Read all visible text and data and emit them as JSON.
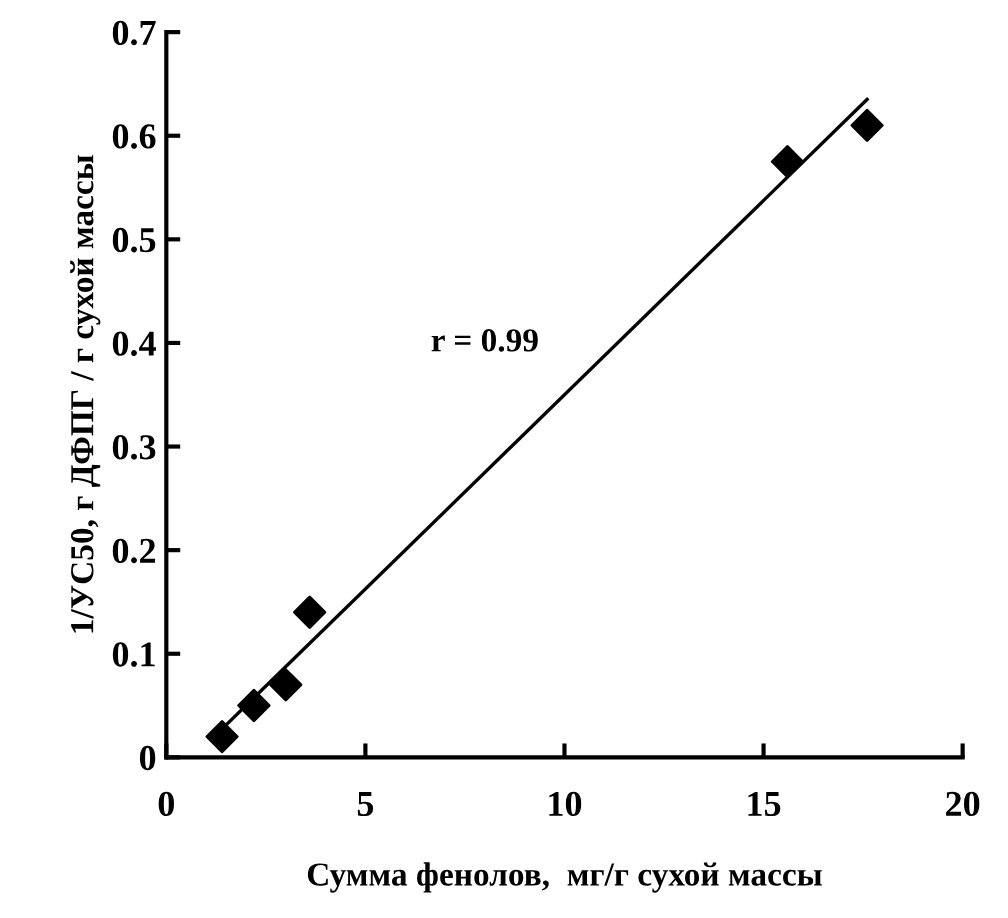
{
  "chart_data": {
    "type": "scatter",
    "xlabel": "Сумма фенолов,  мг/г сухой массы",
    "ylabel": "1/УС50, г ДФПГ / г сухой массы",
    "x": [
      1.4,
      2.2,
      3.0,
      3.6,
      15.6,
      17.6
    ],
    "series": [
      {
        "color": "#000000",
        "marker": "diamond",
        "values": [
          0.02,
          0.05,
          0.07,
          0.14,
          0.575,
          0.61
        ]
      },
      {
        "type": "line",
        "color": "#000000",
        "line_style": "solid",
        "x": [
          1.2,
          17.6
        ],
        "values": [
          0.02,
          0.635
        ]
      }
    ],
    "annotations": [
      "r = 0.99"
    ],
    "xlim": [
      0,
      20
    ],
    "xticks": [
      0,
      5,
      10,
      15,
      20
    ],
    "ylim": [
      0,
      0.7
    ],
    "yticks": [
      0,
      0.1,
      0.2,
      0.3,
      0.4,
      0.5,
      0.6,
      0.7
    ],
    "grid": false,
    "legend": false
  }
}
